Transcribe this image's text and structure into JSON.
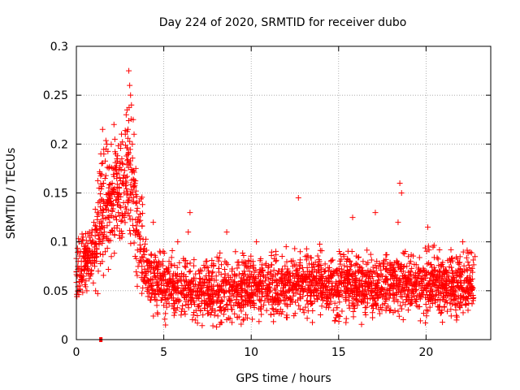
{
  "chart_data": {
    "type": "scatter",
    "title": "Day 224 of 2020, SRMTID for receiver dubo",
    "xlabel": "GPS time / hours",
    "ylabel": "SRMTID / TECUs",
    "xlim": [
      0,
      23.7
    ],
    "ylim": [
      0,
      0.3
    ],
    "xticks": [
      0,
      5,
      10,
      15,
      20
    ],
    "xtick_labels": [
      "0",
      "5",
      "10",
      "15",
      "20"
    ],
    "yticks": [
      0,
      0.05,
      0.1,
      0.15,
      0.2,
      0.25,
      0.3
    ],
    "ytick_labels": [
      "0",
      "0.05",
      "0.1",
      "0.15",
      "0.2",
      "0.25",
      "0.3"
    ],
    "grid": true,
    "marker": "+",
    "color": "#ff0000",
    "series": [
      {
        "name": "dubo",
        "points": [
          [
            0.05,
            0.065
          ],
          [
            0.1,
            0.08
          ],
          [
            0.15,
            0.1
          ],
          [
            0.2,
            0.055
          ],
          [
            0.25,
            0.09
          ],
          [
            0.3,
            0.07
          ],
          [
            0.35,
            0.062
          ],
          [
            0.4,
            0.085
          ],
          [
            0.45,
            0.095
          ],
          [
            0.5,
            0.075
          ],
          [
            0.55,
            0.06
          ],
          [
            0.6,
            0.05
          ],
          [
            0.65,
            0.08
          ],
          [
            0.7,
            0.09
          ],
          [
            0.75,
            0.11
          ],
          [
            0.8,
            0.065
          ],
          [
            0.85,
            0.07
          ],
          [
            0.9,
            0.078
          ],
          [
            0.95,
            0.1
          ],
          [
            1.0,
            0.12
          ],
          [
            1.05,
            0.075
          ],
          [
            1.1,
            0.05
          ],
          [
            1.15,
            0.085
          ],
          [
            1.2,
            0.13
          ],
          [
            1.25,
            0.14
          ],
          [
            1.3,
            0.155
          ],
          [
            1.35,
            0.17
          ],
          [
            1.4,
            0.19
          ],
          [
            1.45,
            0.18
          ],
          [
            1.5,
            0.215
          ],
          [
            1.55,
            0.16
          ],
          [
            1.6,
            0.11
          ],
          [
            1.65,
            0.09
          ],
          [
            1.7,
            0.195
          ],
          [
            1.75,
            0.2
          ],
          [
            1.8,
            0.14
          ],
          [
            1.85,
            0.125
          ],
          [
            1.9,
            0.15
          ],
          [
            1.95,
            0.11
          ],
          [
            2.0,
            0.085
          ],
          [
            2.05,
            0.16
          ],
          [
            2.1,
            0.175
          ],
          [
            2.15,
            0.22
          ],
          [
            2.2,
            0.205
          ],
          [
            2.25,
            0.19
          ],
          [
            2.3,
            0.17
          ],
          [
            2.35,
            0.15
          ],
          [
            2.4,
            0.13
          ],
          [
            2.45,
            0.155
          ],
          [
            2.5,
            0.18
          ],
          [
            2.55,
            0.2
          ],
          [
            2.6,
            0.185
          ],
          [
            2.65,
            0.16
          ],
          [
            2.7,
            0.14
          ],
          [
            2.75,
            0.125
          ],
          [
            2.8,
            0.21
          ],
          [
            2.85,
            0.23
          ],
          [
            2.9,
            0.235
          ],
          [
            2.95,
            0.215
          ],
          [
            3.0,
            0.275
          ],
          [
            3.05,
            0.26
          ],
          [
            3.1,
            0.25
          ],
          [
            3.15,
            0.24
          ],
          [
            3.2,
            0.2
          ],
          [
            3.25,
            0.225
          ],
          [
            3.3,
            0.21
          ],
          [
            3.35,
            0.16
          ],
          [
            3.4,
            0.175
          ],
          [
            3.45,
            0.14
          ],
          [
            3.5,
            0.12
          ],
          [
            3.55,
            0.11
          ],
          [
            3.6,
            0.105
          ],
          [
            3.65,
            0.09
          ],
          [
            3.7,
            0.08
          ],
          [
            3.75,
            0.075
          ],
          [
            3.8,
            0.068
          ],
          [
            3.85,
            0.06
          ],
          [
            3.9,
            0.072
          ],
          [
            3.95,
            0.058
          ],
          [
            4.0,
            0.066
          ],
          [
            4.1,
            0.07
          ],
          [
            4.2,
            0.08
          ],
          [
            4.3,
            0.055
          ],
          [
            4.4,
            0.12
          ],
          [
            4.5,
            0.065
          ],
          [
            4.6,
            0.04
          ],
          [
            4.7,
            0.08
          ],
          [
            4.8,
            0.05
          ],
          [
            4.9,
            0.06
          ],
          [
            5.0,
            0.035
          ],
          [
            5.1,
            0.015
          ],
          [
            5.2,
            0.05
          ],
          [
            5.3,
            0.08
          ],
          [
            5.4,
            0.045
          ],
          [
            5.5,
            0.065
          ],
          [
            5.6,
            0.055
          ],
          [
            5.7,
            0.03
          ],
          [
            5.8,
            0.1
          ],
          [
            5.9,
            0.04
          ],
          [
            6.0,
            0.06
          ],
          [
            6.1,
            0.05
          ],
          [
            6.2,
            0.075
          ],
          [
            6.3,
            0.045
          ],
          [
            6.4,
            0.11
          ],
          [
            6.5,
            0.13
          ],
          [
            6.6,
            0.06
          ],
          [
            6.7,
            0.04
          ],
          [
            6.8,
            0.02
          ],
          [
            6.9,
            0.05
          ],
          [
            7.0,
            0.07
          ],
          [
            7.1,
            0.03
          ],
          [
            7.2,
            0.055
          ],
          [
            7.3,
            0.045
          ],
          [
            7.4,
            0.08
          ],
          [
            7.5,
            0.035
          ],
          [
            7.6,
            0.06
          ],
          [
            7.7,
            0.04
          ],
          [
            7.8,
            0.05
          ],
          [
            7.9,
            0.025
          ],
          [
            8.0,
            0.065
          ],
          [
            8.1,
            0.045
          ],
          [
            8.2,
            0.055
          ],
          [
            8.3,
            0.03
          ],
          [
            8.4,
            0.06
          ],
          [
            8.5,
            0.08
          ],
          [
            8.6,
            0.11
          ],
          [
            8.7,
            0.05
          ],
          [
            8.8,
            0.04
          ],
          [
            8.9,
            0.07
          ],
          [
            9.0,
            0.045
          ],
          [
            9.1,
            0.09
          ],
          [
            9.2,
            0.055
          ],
          [
            9.3,
            0.035
          ],
          [
            9.4,
            0.06
          ],
          [
            9.5,
            0.05
          ],
          [
            9.6,
            0.07
          ],
          [
            9.7,
            0.04
          ],
          [
            9.8,
            0.065
          ],
          [
            9.9,
            0.055
          ],
          [
            10.0,
            0.045
          ],
          [
            10.1,
            0.08
          ],
          [
            10.2,
            0.06
          ],
          [
            10.3,
            0.1
          ],
          [
            10.4,
            0.05
          ],
          [
            10.5,
            0.04
          ],
          [
            10.6,
            0.07
          ],
          [
            10.7,
            0.055
          ],
          [
            10.8,
            0.06
          ],
          [
            10.9,
            0.045
          ],
          [
            11.0,
            0.075
          ],
          [
            11.1,
            0.05
          ],
          [
            11.2,
            0.065
          ],
          [
            11.3,
            0.04
          ],
          [
            11.4,
            0.08
          ],
          [
            11.5,
            0.055
          ],
          [
            11.6,
            0.07
          ],
          [
            11.7,
            0.05
          ],
          [
            11.8,
            0.06
          ],
          [
            11.9,
            0.045
          ],
          [
            12.0,
            0.095
          ],
          [
            12.1,
            0.06
          ],
          [
            12.2,
            0.05
          ],
          [
            12.3,
            0.08
          ],
          [
            12.4,
            0.065
          ],
          [
            12.5,
            0.055
          ],
          [
            12.6,
            0.07
          ],
          [
            12.7,
            0.145
          ],
          [
            12.8,
            0.09
          ],
          [
            12.9,
            0.06
          ],
          [
            13.0,
            0.05
          ],
          [
            13.1,
            0.085
          ],
          [
            13.2,
            0.04
          ],
          [
            13.3,
            0.065
          ],
          [
            13.4,
            0.055
          ],
          [
            13.5,
            0.07
          ],
          [
            13.6,
            0.045
          ],
          [
            13.7,
            0.06
          ],
          [
            13.8,
            0.05
          ],
          [
            13.9,
            0.08
          ],
          [
            14.0,
            0.055
          ],
          [
            14.1,
            0.04
          ],
          [
            14.2,
            0.07
          ],
          [
            14.3,
            0.05
          ],
          [
            14.4,
            0.06
          ],
          [
            14.5,
            0.045
          ],
          [
            14.6,
            0.065
          ],
          [
            14.7,
            0.03
          ],
          [
            14.8,
            0.055
          ],
          [
            14.9,
            0.07
          ],
          [
            15.0,
            0.05
          ],
          [
            15.1,
            0.06
          ],
          [
            15.2,
            0.045
          ],
          [
            15.3,
            0.085
          ],
          [
            15.4,
            0.055
          ],
          [
            15.5,
            0.065
          ],
          [
            15.6,
            0.04
          ],
          [
            15.7,
            0.075
          ],
          [
            15.8,
            0.125
          ],
          [
            15.9,
            0.06
          ],
          [
            16.0,
            0.05
          ],
          [
            16.1,
            0.07
          ],
          [
            16.2,
            0.045
          ],
          [
            16.3,
            0.06
          ],
          [
            16.4,
            0.08
          ],
          [
            16.5,
            0.055
          ],
          [
            16.6,
            0.065
          ],
          [
            16.7,
            0.05
          ],
          [
            16.8,
            0.07
          ],
          [
            16.9,
            0.045
          ],
          [
            17.0,
            0.06
          ],
          [
            17.1,
            0.13
          ],
          [
            17.2,
            0.055
          ],
          [
            17.3,
            0.075
          ],
          [
            17.4,
            0.05
          ],
          [
            17.5,
            0.065
          ],
          [
            17.6,
            0.045
          ],
          [
            17.7,
            0.06
          ],
          [
            17.8,
            0.07
          ],
          [
            17.9,
            0.05
          ],
          [
            18.0,
            0.055
          ],
          [
            18.1,
            0.065
          ],
          [
            18.2,
            0.045
          ],
          [
            18.3,
            0.06
          ],
          [
            18.4,
            0.12
          ],
          [
            18.5,
            0.16
          ],
          [
            18.6,
            0.15
          ],
          [
            18.7,
            0.07
          ],
          [
            18.8,
            0.05
          ],
          [
            18.9,
            0.06
          ],
          [
            19.0,
            0.045
          ],
          [
            19.1,
            0.07
          ],
          [
            19.2,
            0.055
          ],
          [
            19.3,
            0.065
          ],
          [
            19.4,
            0.05
          ],
          [
            19.5,
            0.06
          ],
          [
            19.6,
            0.045
          ],
          [
            19.7,
            0.07
          ],
          [
            19.8,
            0.055
          ],
          [
            19.9,
            0.065
          ],
          [
            20.0,
            0.05
          ],
          [
            20.1,
            0.115
          ],
          [
            20.2,
            0.06
          ],
          [
            20.3,
            0.045
          ],
          [
            20.4,
            0.07
          ],
          [
            20.5,
            0.055
          ],
          [
            20.6,
            0.065
          ],
          [
            20.7,
            0.05
          ],
          [
            20.8,
            0.04
          ],
          [
            20.9,
            0.06
          ],
          [
            21.0,
            0.055
          ],
          [
            21.1,
            0.07
          ],
          [
            21.2,
            0.045
          ],
          [
            21.3,
            0.065
          ],
          [
            21.4,
            0.05
          ],
          [
            21.5,
            0.06
          ],
          [
            21.6,
            0.04
          ],
          [
            21.7,
            0.07
          ],
          [
            21.8,
            0.055
          ],
          [
            21.9,
            0.065
          ],
          [
            22.0,
            0.045
          ],
          [
            22.1,
            0.1
          ],
          [
            22.2,
            0.05
          ],
          [
            22.3,
            0.06
          ],
          [
            22.4,
            0.03
          ],
          [
            22.5,
            0.065
          ],
          [
            22.6,
            0.055
          ],
          [
            22.7,
            0.04
          ],
          [
            22.8,
            0.085
          ]
        ],
        "band": {
          "x_range": [
            0.0,
            22.8
          ],
          "y_center_note": "dense cloud of points following the profile below"
        }
      }
    ],
    "density_profile": [
      [
        0.0,
        0.072
      ],
      [
        1.0,
        0.09
      ],
      [
        1.5,
        0.13
      ],
      [
        2.0,
        0.15
      ],
      [
        2.5,
        0.16
      ],
      [
        3.0,
        0.17
      ],
      [
        3.5,
        0.11
      ],
      [
        4.0,
        0.07
      ],
      [
        5.0,
        0.052
      ],
      [
        7.0,
        0.048
      ],
      [
        9.0,
        0.05
      ],
      [
        11.0,
        0.055
      ],
      [
        13.0,
        0.058
      ],
      [
        15.0,
        0.055
      ],
      [
        17.0,
        0.055
      ],
      [
        19.0,
        0.058
      ],
      [
        21.0,
        0.055
      ],
      [
        22.8,
        0.058
      ]
    ],
    "outlier_square": [
      1.4,
      0.0
    ]
  }
}
